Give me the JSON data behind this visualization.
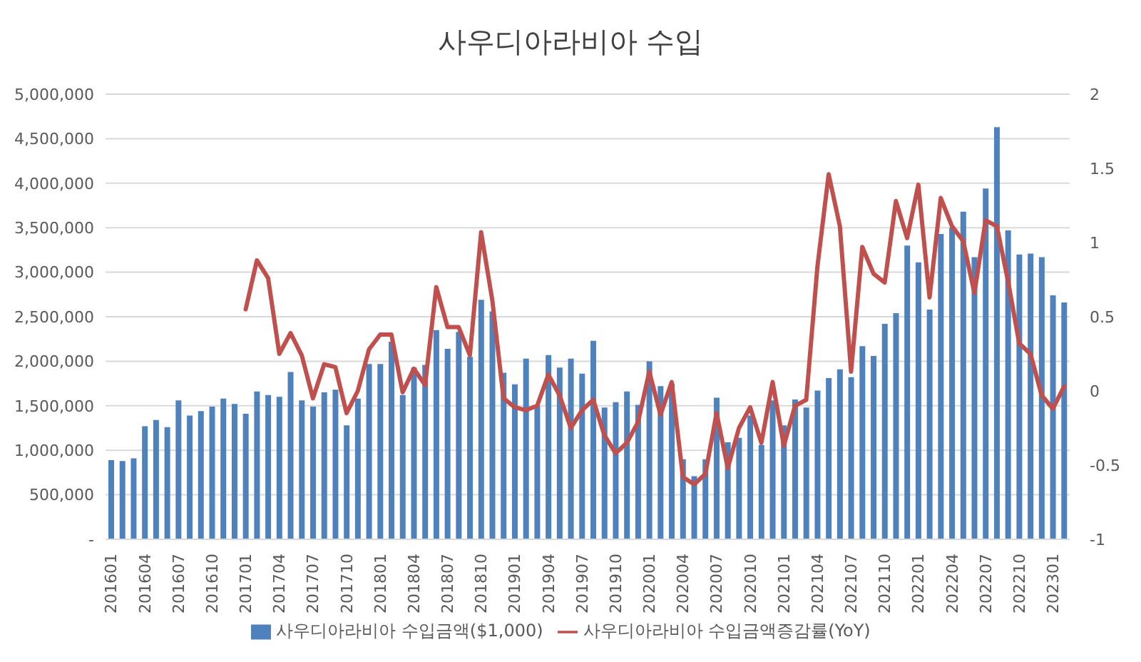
{
  "chart_data": {
    "type": "bar",
    "title": "사우디아라비아 수입",
    "categories": [
      "201601",
      null,
      null,
      "201604",
      null,
      null,
      "201607",
      null,
      null,
      "201610",
      null,
      null,
      "201701",
      null,
      null,
      "201704",
      null,
      null,
      "201707",
      null,
      null,
      "201710",
      null,
      null,
      "201801",
      null,
      null,
      "201804",
      null,
      null,
      "201807",
      null,
      null,
      "201810",
      null,
      null,
      "201901",
      null,
      null,
      "201904",
      null,
      null,
      "201907",
      null,
      null,
      "201910",
      null,
      null,
      "202001",
      null,
      null,
      "202004",
      null,
      null,
      "202007",
      null,
      null,
      "202010",
      null,
      null,
      "202101",
      null,
      null,
      "202104",
      null,
      null,
      "202107",
      null,
      null,
      "202110",
      null,
      null,
      "202201",
      null,
      null,
      "202204",
      null,
      null,
      "202207",
      null,
      null,
      "202210",
      null,
      null,
      "202301",
      null
    ],
    "series": [
      {
        "type": "bar",
        "name": "사우디아라비아 수입금액($1,000)",
        "color": "#4f81bd",
        "values": [
          890000,
          880000,
          910000,
          1270000,
          1340000,
          1260000,
          1560000,
          1390000,
          1440000,
          1490000,
          1580000,
          1520000,
          1410000,
          1660000,
          1620000,
          1600000,
          1880000,
          1560000,
          1490000,
          1650000,
          1680000,
          1280000,
          1580000,
          1970000,
          1970000,
          2220000,
          1620000,
          1930000,
          1960000,
          2350000,
          2140000,
          2330000,
          2050000,
          2690000,
          2560000,
          1870000,
          1740000,
          2030000,
          1500000,
          2070000,
          1930000,
          2030000,
          1860000,
          2230000,
          1480000,
          1540000,
          1660000,
          1510000,
          2000000,
          1720000,
          1750000,
          900000,
          710000,
          900000,
          1590000,
          1090000,
          1140000,
          1390000,
          1060000,
          1560000,
          1280000,
          1570000,
          1480000,
          1670000,
          1810000,
          1910000,
          1820000,
          2170000,
          2060000,
          2420000,
          2540000,
          3300000,
          3110000,
          2580000,
          3430000,
          3500000,
          3680000,
          3170000,
          3940000,
          4630000,
          3470000,
          3200000,
          3210000,
          3170000,
          2740000,
          2660000
        ]
      },
      {
        "type": "line",
        "axis": "y2",
        "name": "사우디아라비아 수입금액증감률(YoY)",
        "color": "#c0504d",
        "values": [
          null,
          null,
          null,
          null,
          null,
          null,
          null,
          null,
          null,
          null,
          null,
          null,
          0.55,
          0.88,
          0.76,
          0.25,
          0.39,
          0.24,
          -0.05,
          0.18,
          0.16,
          -0.15,
          0.0,
          0.28,
          0.38,
          0.38,
          -0.01,
          0.15,
          0.04,
          0.7,
          0.43,
          0.43,
          0.24,
          1.07,
          0.61,
          -0.05,
          -0.11,
          -0.13,
          -0.1,
          0.11,
          -0.03,
          -0.25,
          -0.13,
          -0.06,
          -0.3,
          -0.42,
          -0.35,
          -0.21,
          0.13,
          -0.16,
          0.06,
          -0.58,
          -0.63,
          -0.56,
          -0.15,
          -0.52,
          -0.25,
          -0.11,
          -0.35,
          0.06,
          -0.37,
          -0.1,
          -0.06,
          0.84,
          1.46,
          1.11,
          0.13,
          0.97,
          0.79,
          0.73,
          1.28,
          1.03,
          1.39,
          0.63,
          1.3,
          1.11,
          1.01,
          0.66,
          1.15,
          1.11,
          0.74,
          0.32,
          0.25,
          -0.03,
          -0.12,
          0.03
        ]
      }
    ],
    "ylim": [
      0,
      5000000
    ],
    "yticks": [
      {
        "value": 0,
        "label": "-"
      },
      {
        "value": 500000,
        "label": "500,000"
      },
      {
        "value": 1000000,
        "label": "1,000,000"
      },
      {
        "value": 1500000,
        "label": "1,500,000"
      },
      {
        "value": 2000000,
        "label": "2,000,000"
      },
      {
        "value": 2500000,
        "label": "2,500,000"
      },
      {
        "value": 3000000,
        "label": "3,000,000"
      },
      {
        "value": 3500000,
        "label": "3,500,000"
      },
      {
        "value": 4000000,
        "label": "4,000,000"
      },
      {
        "value": 4500000,
        "label": "4,500,000"
      },
      {
        "value": 5000000,
        "label": "5,000,000"
      }
    ],
    "y2lim": [
      -1,
      2
    ],
    "y2ticks": [
      -1,
      -0.5,
      0,
      0.5,
      1,
      1.5,
      2
    ],
    "grid": "y",
    "legend": "bottom",
    "marker": "none",
    "line_style": "solid"
  }
}
